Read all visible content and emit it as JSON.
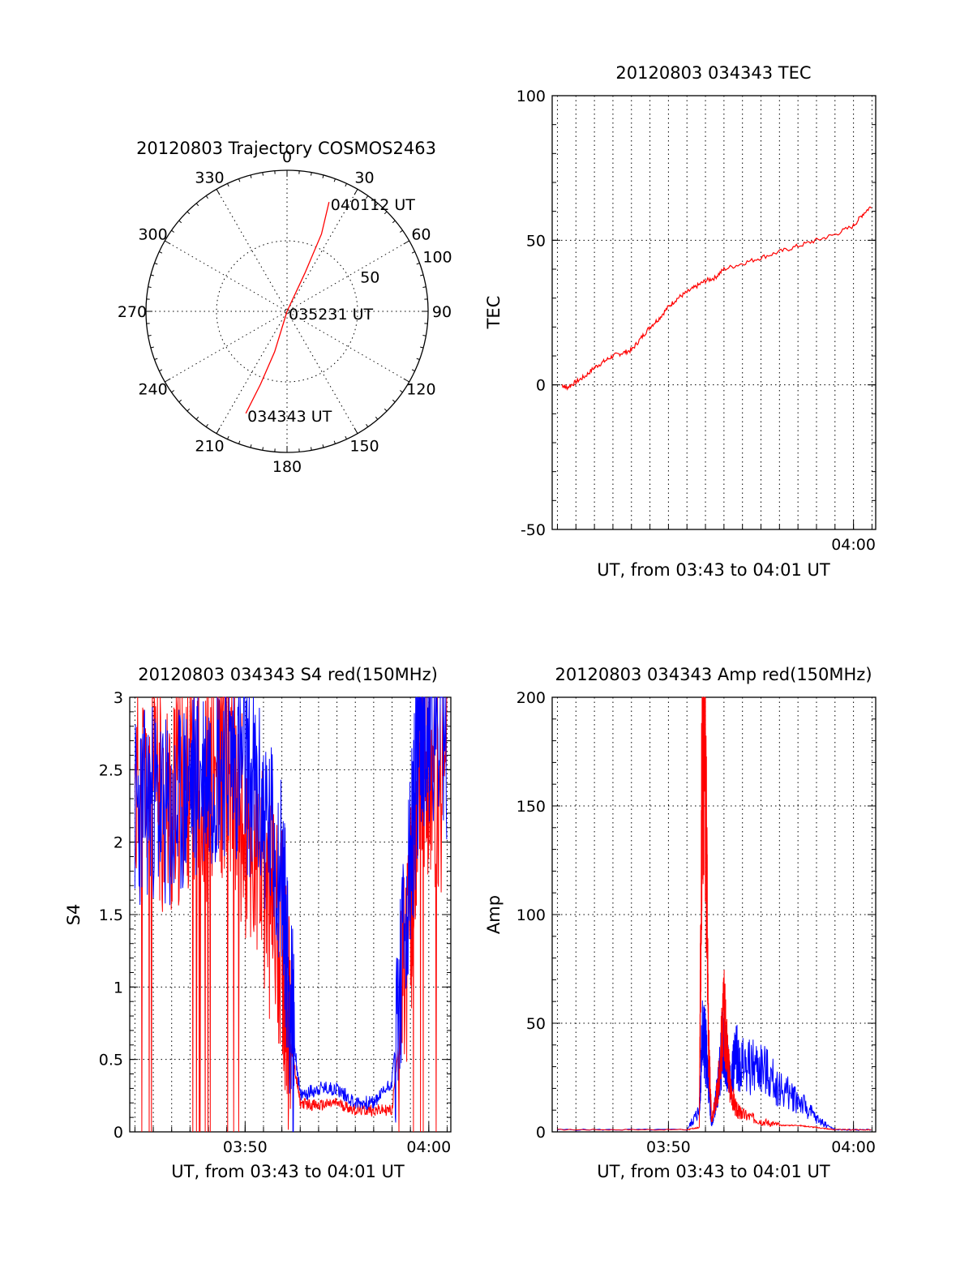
{
  "chart_data": [
    {
      "type": "polar",
      "title": "20120803 Trajectory COSMOS2463",
      "angle_labels": [
        "0",
        "30",
        "60",
        "90",
        "120",
        "150",
        "180",
        "210",
        "240",
        "270",
        "300",
        "330"
      ],
      "angle_degrees": [
        0,
        30,
        60,
        90,
        120,
        150,
        180,
        210,
        240,
        270,
        300,
        330
      ],
      "radius_labels": [
        "50",
        "100"
      ],
      "radius_values": [
        50,
        100
      ],
      "rlim": [
        0,
        100
      ],
      "colors": {
        "trajectory": "#ff0000"
      },
      "trajectory": [
        {
          "az": 202,
          "r": 78,
          "label": ""
        },
        {
          "az": 200,
          "r": 55,
          "label": ""
        },
        {
          "az": 197,
          "r": 30,
          "label": ""
        },
        {
          "az": 0,
          "r": 0,
          "label": ""
        },
        {
          "az": 25,
          "r": 30,
          "label": ""
        },
        {
          "az": 24,
          "r": 60,
          "label": ""
        },
        {
          "az": 21,
          "r": 83,
          "label": ""
        }
      ],
      "time_labels": [
        {
          "text": "040112 UT",
          "az": 21,
          "r": 83
        },
        {
          "text": "035231 UT",
          "az": 0,
          "r": 0
        },
        {
          "text": "034343 UT",
          "az": 202,
          "r": 78
        }
      ]
    },
    {
      "type": "line",
      "title": "20120803 034343 TEC",
      "xlabel": "UT, from 03:43 to 04:01 UT",
      "ylabel": "TEC",
      "xlim": [
        "03:43:43",
        "04:01:12"
      ],
      "ylim": [
        -50,
        100
      ],
      "yticks": [
        -50,
        0,
        50,
        100
      ],
      "xticks": [
        {
          "t": "04:00",
          "label": "04:00"
        }
      ],
      "colors": {
        "red": "#ff0000"
      },
      "series": [
        {
          "values_time": [
            "03:44:15",
            "03:44:30",
            "03:45:00",
            "03:45:30",
            "03:46:00",
            "03:46:30",
            "03:47:00",
            "03:47:30",
            "03:48:00",
            "03:48:30",
            "03:49:00",
            "03:49:30",
            "03:50:00",
            "03:50:30",
            "03:51:00",
            "03:51:30",
            "03:52:00",
            "03:52:30",
            "03:53:00",
            "03:54:00",
            "03:55:00",
            "03:56:00",
            "03:57:00",
            "03:58:00",
            "03:59:00",
            "04:00:00",
            "04:00:30",
            "04:01:00"
          ],
          "values": [
            0,
            -1,
            1,
            3,
            6,
            8,
            10,
            11,
            12,
            16,
            20,
            23,
            27,
            30,
            32,
            34,
            36,
            37,
            40,
            42,
            44,
            46,
            48,
            50,
            52,
            55,
            59,
            62
          ]
        }
      ]
    },
    {
      "type": "line",
      "title": "20120803 034343 S4 red(150MHz)",
      "xlabel": "UT, from 03:43 to 04:01 UT",
      "ylabel": "S4",
      "xlim": [
        "03:43:43",
        "04:01:12"
      ],
      "ylim": [
        0,
        3
      ],
      "yticks": [
        "0",
        "0.5",
        "1",
        "1.5",
        "2",
        "2.5",
        "3"
      ],
      "xticks": [
        {
          "t": "03:50",
          "label": "03:50"
        },
        {
          "t": "04:00",
          "label": "04:00"
        }
      ],
      "colors": {
        "red": "#ff0000",
        "blue": "#0000ff"
      },
      "series": [
        {
          "color": "red",
          "values_time": [
            "03:44",
            "03:45",
            "03:46",
            "03:47",
            "03:48",
            "03:49",
            "03:50",
            "03:51",
            "03:52",
            "03:52:30",
            "03:53",
            "03:54",
            "03:55",
            "03:56",
            "03:57",
            "03:58",
            "03:59",
            "03:59:30",
            "04:00",
            "04:01"
          ],
          "values": [
            2.3,
            2.4,
            2.2,
            2.5,
            2.3,
            2.6,
            2.0,
            1.7,
            1.3,
            0.6,
            0.2,
            0.18,
            0.2,
            0.15,
            0.15,
            0.15,
            1.5,
            2.6,
            2.5,
            2.4
          ]
        },
        {
          "color": "blue",
          "values_time": [
            "03:44",
            "03:45",
            "03:46",
            "03:47",
            "03:48",
            "03:49",
            "03:50",
            "03:51",
            "03:52",
            "03:52:30",
            "03:53",
            "03:54",
            "03:55",
            "03:56",
            "03:57",
            "03:58",
            "03:59",
            "03:59:30",
            "04:00",
            "04:01"
          ],
          "values": [
            2.2,
            2.3,
            2.1,
            2.4,
            2.5,
            2.6,
            2.5,
            2.2,
            1.8,
            0.8,
            0.25,
            0.3,
            0.3,
            0.2,
            0.2,
            0.35,
            1.8,
            2.8,
            2.8,
            2.7
          ]
        }
      ]
    },
    {
      "type": "line",
      "title": "20120803 034343 Amp red(150MHz)",
      "xlabel": "UT, from 03:43 to 04:01 UT",
      "ylabel": "Amp",
      "xlim": [
        "03:43:43",
        "04:01:12"
      ],
      "ylim": [
        0,
        200
      ],
      "yticks": [
        "0",
        "50",
        "100",
        "150",
        "200"
      ],
      "xticks": [
        {
          "t": "03:50",
          "label": "03:50"
        },
        {
          "t": "04:00",
          "label": "04:00"
        }
      ],
      "colors": {
        "red": "#ff0000",
        "blue": "#0000ff"
      },
      "series": [
        {
          "color": "red",
          "values_time": [
            "03:44",
            "03:51",
            "03:51:40",
            "03:51:50",
            "03:52",
            "03:52:10",
            "03:52:20",
            "03:52:40",
            "03:53",
            "03:53:10",
            "03:53:20",
            "03:53:40",
            "03:54",
            "03:55",
            "03:56",
            "03:57",
            "03:58",
            "03:59",
            "04:01"
          ],
          "values": [
            1,
            1,
            2,
            190,
            170,
            40,
            5,
            20,
            55,
            40,
            20,
            10,
            8,
            5,
            3,
            3,
            2,
            1,
            1
          ]
        },
        {
          "color": "blue",
          "values_time": [
            "03:44",
            "03:51",
            "03:51:40",
            "03:51:50",
            "03:52",
            "03:52:10",
            "03:52:20",
            "03:52:40",
            "03:53",
            "03:53:10",
            "03:53:20",
            "03:53:40",
            "03:54",
            "03:55",
            "03:56",
            "03:57",
            "03:58",
            "03:59",
            "04:01"
          ],
          "values": [
            1,
            1,
            10,
            45,
            40,
            20,
            3,
            20,
            45,
            30,
            25,
            35,
            30,
            30,
            20,
            15,
            6,
            1,
            1
          ]
        }
      ]
    }
  ]
}
